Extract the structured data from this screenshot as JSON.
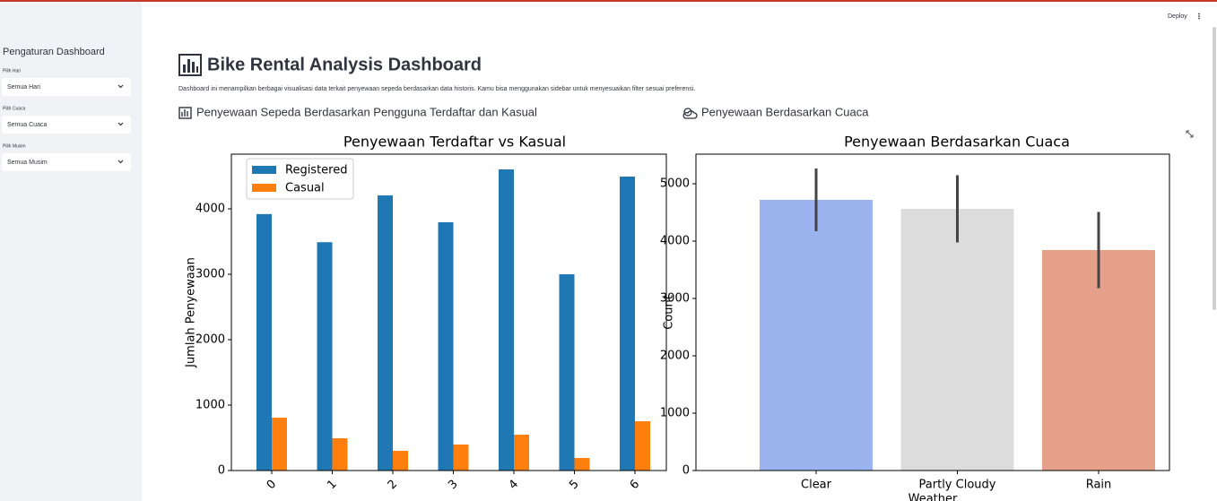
{
  "sidebar": {
    "title": "Pengaturan Dashboard",
    "filters": [
      {
        "label": "Pilih Hari",
        "value": "Semua Hari"
      },
      {
        "label": "Pilih Cuaca",
        "value": "Semua Cuaca"
      },
      {
        "label": "Pilih Musim",
        "value": "Semua Musim"
      }
    ]
  },
  "header": {
    "deploy": "Deploy"
  },
  "main": {
    "title": "Bike Rental Analysis Dashboard",
    "description": "Dashboard ini menampilkan berbagai visualisasi data terkait penyewaan sepeda berdasarkan data historis. Kamu bisa menggunakan sidebar untuk menyesuaikan filter sesuai preferensi.",
    "sections": [
      "Penyewaan Sepeda Berdasarkan Pengguna Terdaftar dan Kasual",
      "Penyewaan Berdasarkan Cuaca"
    ]
  },
  "chart_data": [
    {
      "type": "bar",
      "title": "Penyewaan Terdaftar vs Kasual",
      "ylabel": "Jumlah Penyewaan",
      "categories": [
        "0",
        "1",
        "2",
        "3",
        "4",
        "5",
        "6"
      ],
      "xtick_rotation": 45,
      "series": [
        {
          "name": "Registered",
          "color": "#1f77b4",
          "values": [
            3920,
            3490,
            4205,
            3795,
            4603,
            3000,
            4493
          ]
        },
        {
          "name": "Casual",
          "color": "#ff7f0e",
          "values": [
            808,
            493,
            301,
            397,
            548,
            192,
            753
          ]
        }
      ],
      "ylim": [
        0,
        4836
      ],
      "yticks": [
        0,
        1000,
        2000,
        3000,
        4000
      ],
      "legend": "upper-left"
    },
    {
      "type": "bar",
      "title": "Penyewaan Berdasarkan Cuaca",
      "xlabel": "Weather",
      "ylabel": "Count",
      "categories": [
        "Clear",
        "Partly Cloudy",
        "Rain"
      ],
      "values": [
        4719,
        4563,
        3844
      ],
      "errors": [
        547,
        586,
        664
      ],
      "colors": [
        "#9bb4ef",
        "#dcdcdc",
        "#e5a08a"
      ],
      "ylim": [
        0,
        5516
      ],
      "yticks": [
        0,
        1000,
        2000,
        3000,
        4000,
        5000
      ]
    }
  ]
}
